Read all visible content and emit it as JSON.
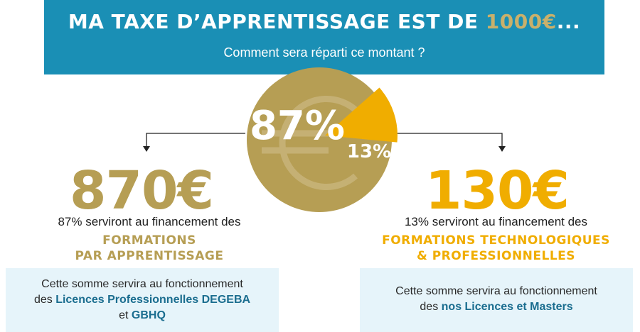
{
  "header": {
    "title_prefix": "MA TAXE D’APPRENTISSAGE EST DE ",
    "title_amount": "1000€",
    "title_suffix": "...",
    "subtitle": "Comment sera réparti ce montant ?"
  },
  "coin": {
    "main_percent": "87%",
    "slice_percent": "13%",
    "main_fraction": 0.87,
    "slice_fraction": 0.13
  },
  "left": {
    "amount": "870€",
    "description": "87% serviront au financement des",
    "category_line1": "FORMATIONS",
    "category_line2": "PAR APPRENTISSAGE",
    "box_line1": "Cette somme servira au fonctionnement",
    "box_line2_prefix": "des ",
    "box_line2_bold": "Licences Professionnelles DEGEBA",
    "box_line3_prefix": "et ",
    "box_line3_bold": "GBHQ"
  },
  "right": {
    "amount": "130€",
    "description": "13% serviront au financement des",
    "category_line1": "FORMATIONS TECHNOLOGIQUES",
    "category_line2": "& PROFESSIONNELLES",
    "box_line1": "Cette somme servira au fonctionnement",
    "box_line2_prefix": "des ",
    "box_line2_bold": "nos Licences et Masters"
  },
  "colors": {
    "header_bg": "#1a8fb5",
    "gold": "#b69e54",
    "orange": "#f0ad00",
    "box_bg": "#e6f4fa"
  }
}
